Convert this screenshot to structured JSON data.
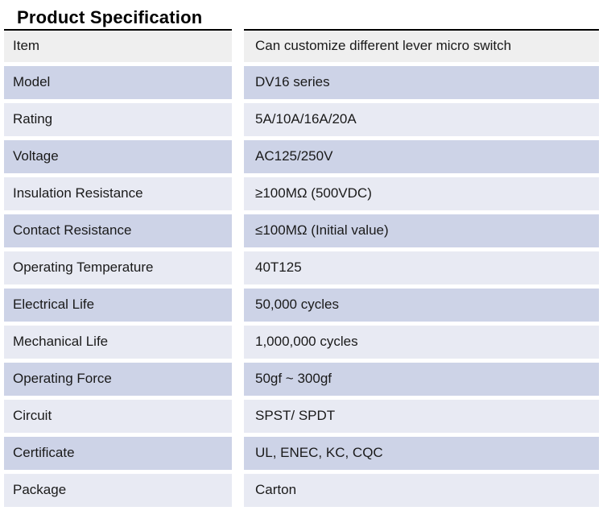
{
  "page": {
    "title": "Product Specification"
  },
  "table": {
    "rows": [
      {
        "label": "Item",
        "value": "Can customize different lever micro switch"
      },
      {
        "label": "Model",
        "value": "DV16 series"
      },
      {
        "label": "Rating",
        "value": "5A/10A/16A/20A"
      },
      {
        "label": "Voltage",
        "value": "AC125/250V"
      },
      {
        "label": "Insulation Resistance",
        "value": "≥100MΩ (500VDC)"
      },
      {
        "label": "Contact Resistance",
        "value": "≤100MΩ (Initial value)"
      },
      {
        "label": "Operating Temperature",
        "value": "40T125"
      },
      {
        "label": "Electrical Life",
        "value": "50,000 cycles"
      },
      {
        "label": "Mechanical Life",
        "value": "1,000,000 cycles"
      },
      {
        "label": "Operating Force",
        "value": "50gf ~ 300gf"
      },
      {
        "label": "Circuit",
        "value": "SPST/ SPDT"
      },
      {
        "label": "Certificate",
        "value": "UL, ENEC, KC, CQC"
      },
      {
        "label": "Package",
        "value": "Carton"
      }
    ],
    "colors": {
      "header_row_bg": "#efefef",
      "row_alt_dark": "#cdd3e7",
      "row_alt_light": "#e8eaf3",
      "top_border": "#000000",
      "text": "#1a1a1a"
    }
  }
}
